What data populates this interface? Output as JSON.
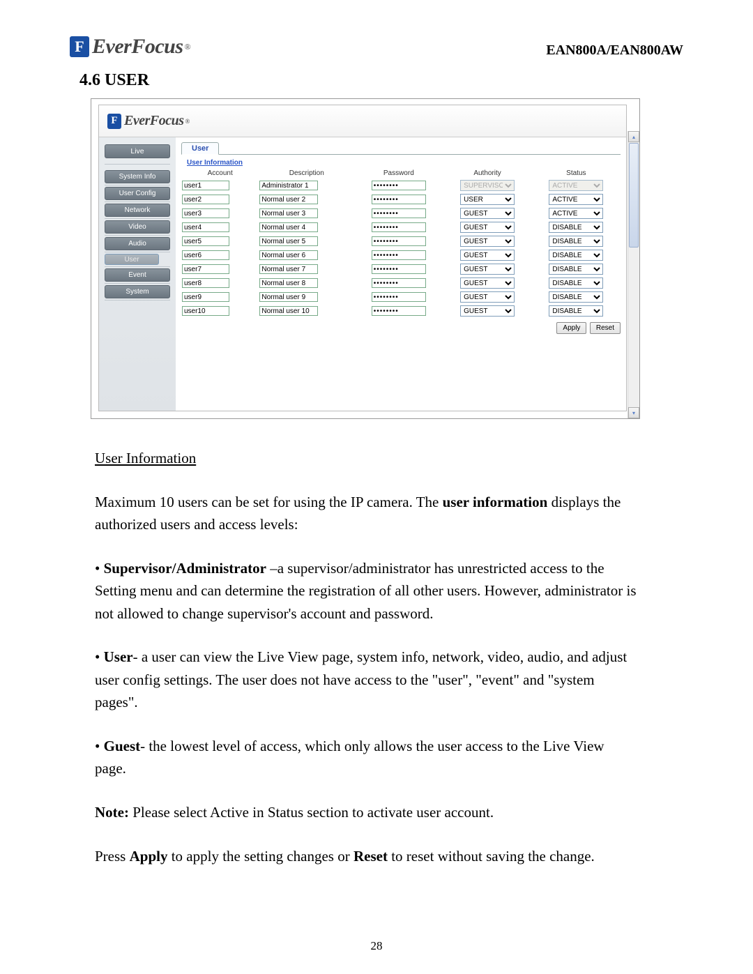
{
  "header": {
    "brand": "EverFocus",
    "model": "EAN800A/EAN800AW"
  },
  "section_number": "4.6",
  "section_title": "USER",
  "screenshot": {
    "brand": "EverFocus",
    "sidebar": {
      "live": "Live",
      "items": [
        "System Info",
        "User Config",
        "Network",
        "Video",
        "Audio",
        "User",
        "Event",
        "System"
      ],
      "selected_index": 5
    },
    "tab": "User",
    "fieldset": "User Information",
    "columns": [
      "Account",
      "Description",
      "Password",
      "Authority",
      "Status"
    ],
    "rows": [
      {
        "account": "user1",
        "desc": "Administrator 1",
        "pw": "********",
        "auth": "SUPERVISOR",
        "auth_disabled": true,
        "status": "ACTIVE",
        "status_disabled": true
      },
      {
        "account": "user2",
        "desc": "Normal user 2",
        "pw": "********",
        "auth": "USER",
        "auth_disabled": false,
        "status": "ACTIVE",
        "status_disabled": false
      },
      {
        "account": "user3",
        "desc": "Normal user 3",
        "pw": "********",
        "auth": "GUEST",
        "auth_disabled": false,
        "status": "ACTIVE",
        "status_disabled": false
      },
      {
        "account": "user4",
        "desc": "Normal user 4",
        "pw": "********",
        "auth": "GUEST",
        "auth_disabled": false,
        "status": "DISABLE",
        "status_disabled": false
      },
      {
        "account": "user5",
        "desc": "Normal user 5",
        "pw": "********",
        "auth": "GUEST",
        "auth_disabled": false,
        "status": "DISABLE",
        "status_disabled": false
      },
      {
        "account": "user6",
        "desc": "Normal user 6",
        "pw": "********",
        "auth": "GUEST",
        "auth_disabled": false,
        "status": "DISABLE",
        "status_disabled": false
      },
      {
        "account": "user7",
        "desc": "Normal user 7",
        "pw": "********",
        "auth": "GUEST",
        "auth_disabled": false,
        "status": "DISABLE",
        "status_disabled": false
      },
      {
        "account": "user8",
        "desc": "Normal user 8",
        "pw": "********",
        "auth": "GUEST",
        "auth_disabled": false,
        "status": "DISABLE",
        "status_disabled": false
      },
      {
        "account": "user9",
        "desc": "Normal user 9",
        "pw": "********",
        "auth": "GUEST",
        "auth_disabled": false,
        "status": "DISABLE",
        "status_disabled": false
      },
      {
        "account": "user10",
        "desc": "Normal user 10",
        "pw": "********",
        "auth": "GUEST",
        "auth_disabled": false,
        "status": "DISABLE",
        "status_disabled": false
      }
    ],
    "authority_options": [
      "SUPERVISOR",
      "USER",
      "GUEST"
    ],
    "status_options": [
      "ACTIVE",
      "DISABLE"
    ],
    "apply": "Apply",
    "reset": "Reset"
  },
  "doc": {
    "h": "User Information",
    "p1a": "Maximum 10 users can be set for using the IP camera. The ",
    "p1b": "user information",
    "p1c": " displays the authorized users and access levels:",
    "p2a": "Supervisor/Administrator",
    "p2b": " –a supervisor/administrator has unrestricted access to the Setting menu and can determine the registration of all other users. However, administrator is not allowed to change supervisor's account and password.",
    "p3a": "User",
    "p3b": "- a user can view the Live View page, system info, network, video, audio, and adjust user config settings. The user does not have access to the \"user\", \"event\" and \"system pages\".",
    "p4a": "Guest",
    "p4b": "- the lowest level of access, which only allows the user access to the Live View page.",
    "p5a": "Note:",
    "p5b": " Please select Active in Status section to activate user account.",
    "p6a": "Press ",
    "p6b": "Apply",
    "p6c": " to apply the setting changes or ",
    "p6d": "Reset",
    "p6e": " to reset without saving the change."
  },
  "page_number": "28"
}
